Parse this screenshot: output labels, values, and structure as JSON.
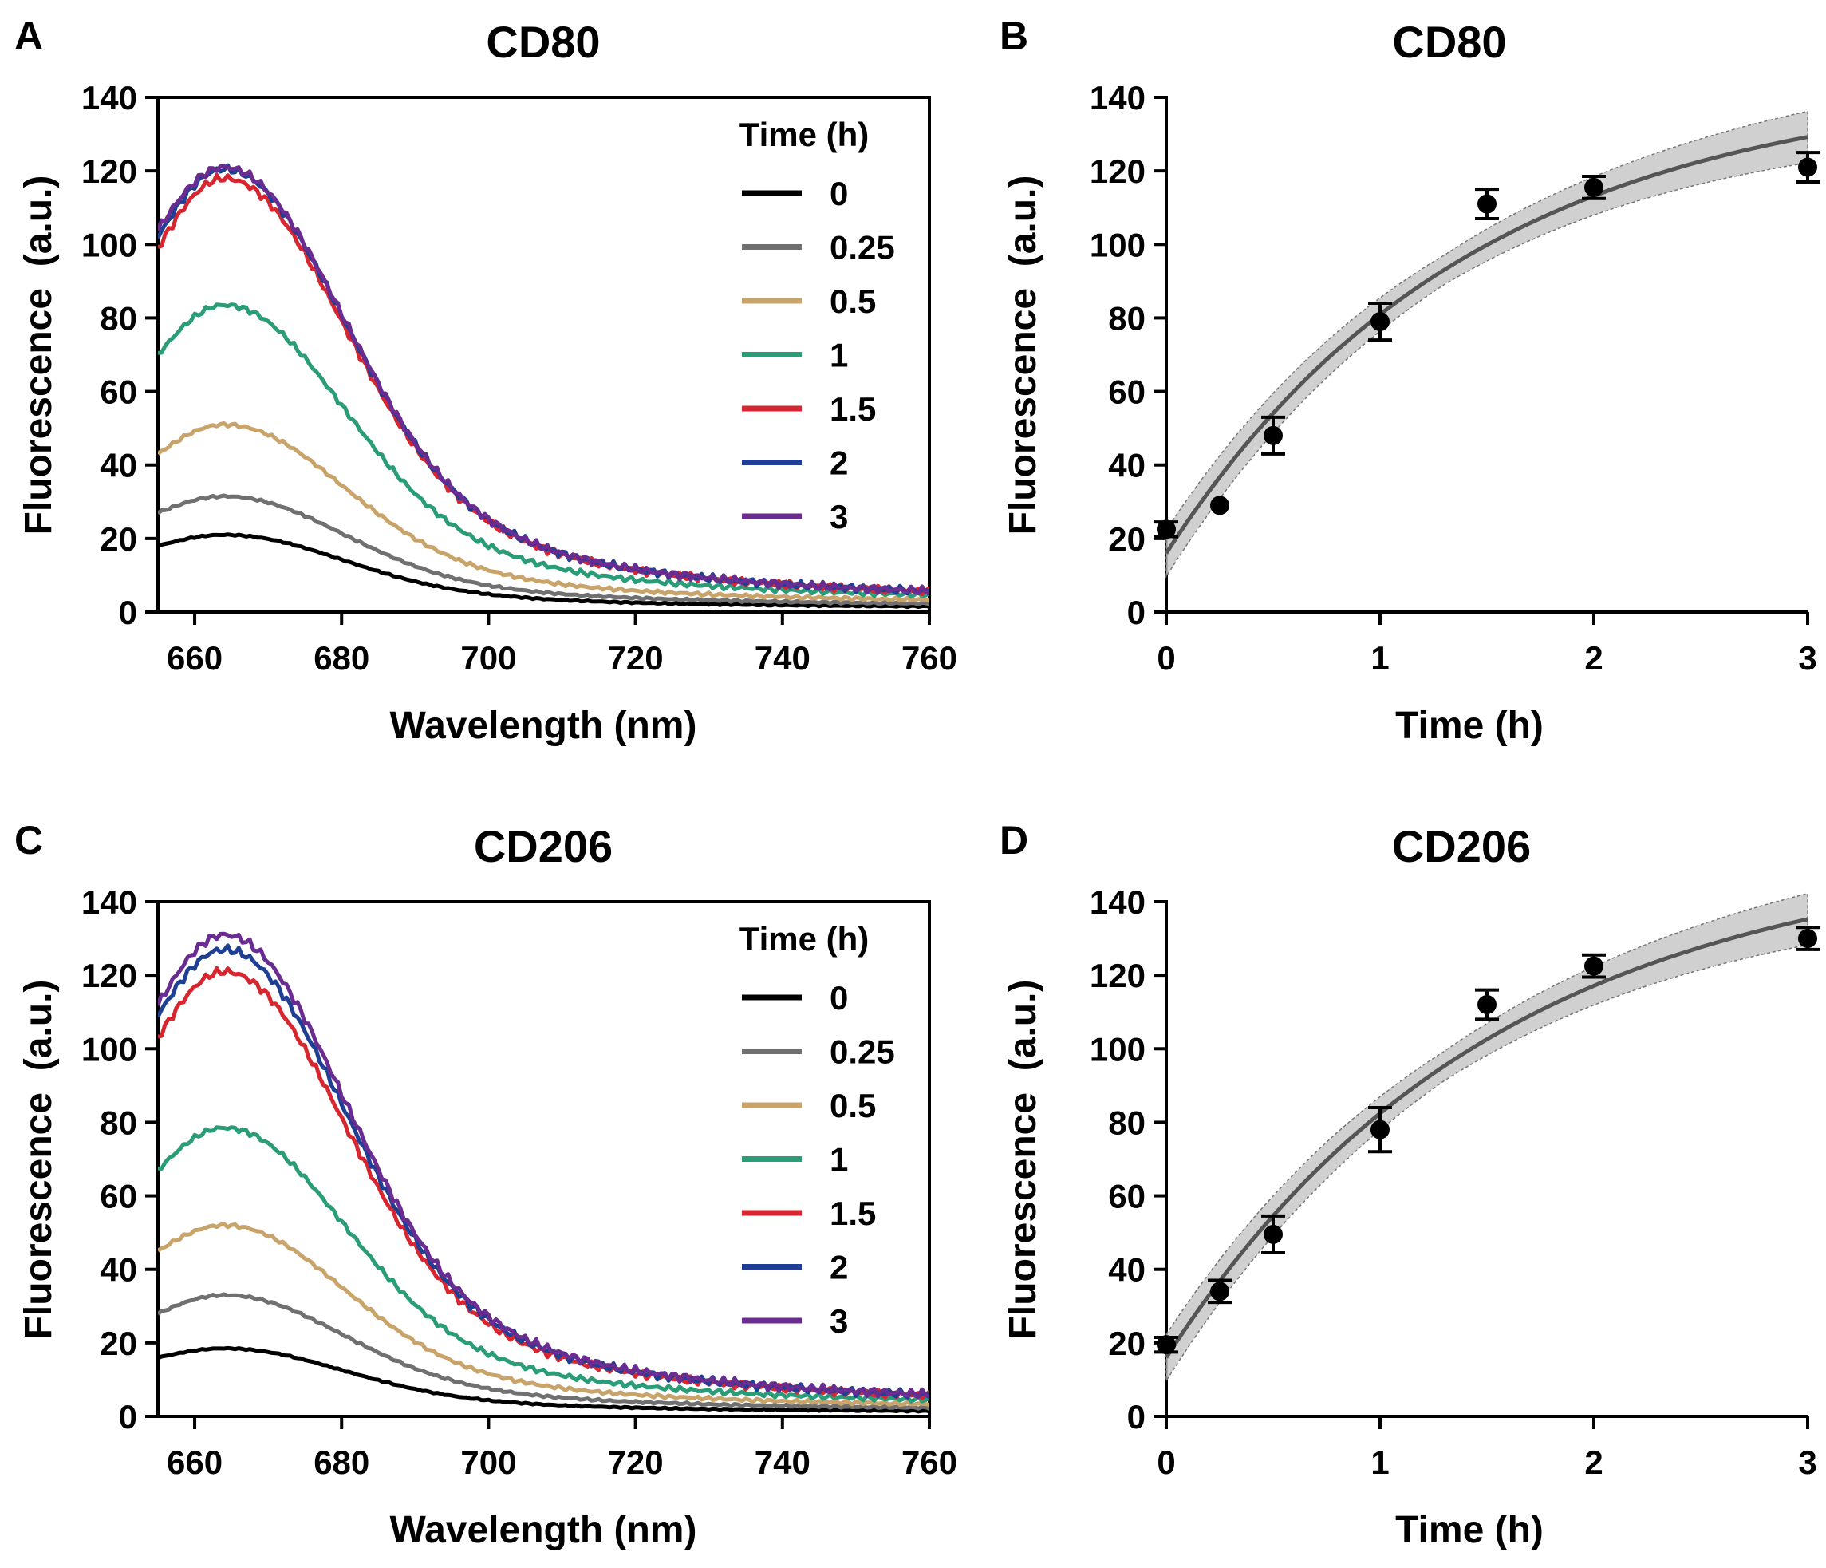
{
  "chart_data": [
    {
      "panel": "A",
      "type": "line",
      "title": "CD80",
      "xlabel": "Wavelength (nm)",
      "ylabel": "Fluorescence  (a.u.)",
      "xlim": [
        655,
        760
      ],
      "ylim": [
        0,
        140
      ],
      "xticks": [
        660,
        680,
        700,
        720,
        740,
        760
      ],
      "yticks": [
        0,
        20,
        40,
        60,
        80,
        100,
        120,
        140
      ],
      "legend_title": "Time (h)",
      "legend_position": "top-right",
      "series": [
        {
          "name": "0",
          "color": "#000000",
          "peak": 21,
          "start": 18,
          "tail": 1
        },
        {
          "name": "0.25",
          "color": "#707070",
          "peak": 31.5,
          "start": 27,
          "tail": 1.5
        },
        {
          "name": "0.5",
          "color": "#c9a46a",
          "peak": 51,
          "start": 43,
          "tail": 2
        },
        {
          "name": "1",
          "color": "#2a9d78",
          "peak": 83.5,
          "start": 70,
          "tail": 2.5
        },
        {
          "name": "1.5",
          "color": "#d7262f",
          "peak": 118,
          "start": 99,
          "tail": 2.5
        },
        {
          "name": "2",
          "color": "#1f3f94",
          "peak": 120.5,
          "start": 102,
          "tail": 2.5
        },
        {
          "name": "3",
          "color": "#6a2c91",
          "peak": 121,
          "start": 104,
          "tail": 2.5
        }
      ]
    },
    {
      "panel": "B",
      "type": "scatter",
      "title": "CD80",
      "xlabel": "Time (h)",
      "ylabel": "Fluorescence  (a.u.)",
      "xlim": [
        0,
        3
      ],
      "ylim": [
        0,
        140
      ],
      "xticks": [
        0,
        1,
        2,
        3
      ],
      "yticks": [
        0,
        20,
        40,
        60,
        80,
        100,
        120,
        140
      ],
      "points": [
        {
          "x": 0,
          "y": 22.5,
          "err": 2
        },
        {
          "x": 0.25,
          "y": 29,
          "err": 1
        },
        {
          "x": 0.5,
          "y": 48,
          "err": 5
        },
        {
          "x": 1,
          "y": 79,
          "err": 5
        },
        {
          "x": 1.5,
          "y": 111,
          "err": 4
        },
        {
          "x": 2,
          "y": 115.5,
          "err": 3
        },
        {
          "x": 3,
          "y": 121,
          "err": 4
        }
      ],
      "fit": {
        "model": "one-phase association",
        "y0": 16,
        "plateau": 145,
        "k": 0.7,
        "band": 5
      },
      "fit_color": "#555555",
      "band_color": "#c8c8c8"
    },
    {
      "panel": "C",
      "type": "line",
      "title": "CD206",
      "xlabel": "Wavelength (nm)",
      "ylabel": "Fluorescence  (a.u.)",
      "xlim": [
        655,
        760
      ],
      "ylim": [
        0,
        140
      ],
      "xticks": [
        660,
        680,
        700,
        720,
        740,
        760
      ],
      "yticks": [
        0,
        20,
        40,
        60,
        80,
        100,
        120,
        140
      ],
      "legend_title": "Time (h)",
      "legend_position": "top-right",
      "series": [
        {
          "name": "0",
          "color": "#000000",
          "peak": 18.5,
          "start": 16,
          "tail": 1
        },
        {
          "name": "0.25",
          "color": "#707070",
          "peak": 33,
          "start": 28,
          "tail": 1.5
        },
        {
          "name": "0.5",
          "color": "#c9a46a",
          "peak": 52,
          "start": 45,
          "tail": 2
        },
        {
          "name": "1",
          "color": "#2a9d78",
          "peak": 78.5,
          "start": 67,
          "tail": 2.5
        },
        {
          "name": "1.5",
          "color": "#d7262f",
          "peak": 121,
          "start": 103,
          "tail": 2.5
        },
        {
          "name": "2",
          "color": "#1f3f94",
          "peak": 127,
          "start": 109,
          "tail": 2.5
        },
        {
          "name": "3",
          "color": "#6a2c91",
          "peak": 131,
          "start": 112,
          "tail": 2.5
        }
      ]
    },
    {
      "panel": "D",
      "type": "scatter",
      "title": "CD206",
      "xlabel": "Time (h)",
      "ylabel": "Fluorescence  (a.u.)",
      "xlim": [
        0,
        3
      ],
      "ylim": [
        0,
        140
      ],
      "xticks": [
        0,
        1,
        2,
        3
      ],
      "yticks": [
        0,
        20,
        40,
        60,
        80,
        100,
        120,
        140
      ],
      "points": [
        {
          "x": 0,
          "y": 19.5,
          "err": 2
        },
        {
          "x": 0.25,
          "y": 34,
          "err": 3
        },
        {
          "x": 0.5,
          "y": 49.5,
          "err": 5
        },
        {
          "x": 1,
          "y": 78,
          "err": 6
        },
        {
          "x": 1.5,
          "y": 112,
          "err": 4
        },
        {
          "x": 2,
          "y": 122.5,
          "err": 3
        },
        {
          "x": 3,
          "y": 130,
          "err": 3
        }
      ],
      "fit": {
        "model": "one-phase association",
        "y0": 16,
        "plateau": 155,
        "k": 0.65,
        "band": 5
      },
      "fit_color": "#555555",
      "band_color": "#c8c8c8"
    }
  ]
}
